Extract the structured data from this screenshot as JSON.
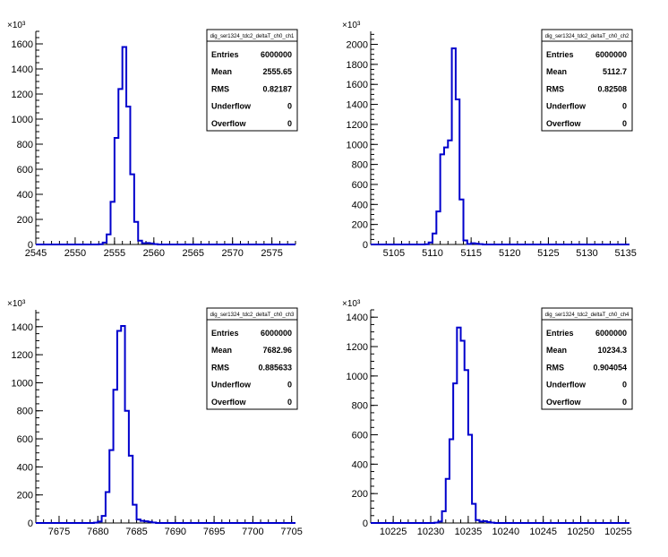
{
  "chart_data": [
    {
      "type": "histogram",
      "stats": {
        "title": "dig_ser1324_tdc2_deltaT_ch0_ch1",
        "entries": "6000000",
        "mean": "2555.65",
        "rms": "0.82187",
        "underflow": "0",
        "overflow": "0"
      },
      "x_range": [
        2545,
        2578
      ],
      "y_range": [
        0,
        1700
      ],
      "y_exponent": "×10³",
      "x_ticks": [
        2545,
        2550,
        2555,
        2560,
        2565,
        2570,
        2575
      ],
      "y_ticks": [
        0,
        200,
        400,
        600,
        800,
        1000,
        1200,
        1400,
        1600
      ],
      "bin_width": 0.5,
      "bins": [
        [
          2552.5,
          0
        ],
        [
          2553.0,
          2
        ],
        [
          2553.5,
          15
        ],
        [
          2554.0,
          80
        ],
        [
          2554.5,
          340
        ],
        [
          2555.0,
          850
        ],
        [
          2555.5,
          1240
        ],
        [
          2556.0,
          1575
        ],
        [
          2556.5,
          1100
        ],
        [
          2557.0,
          560
        ],
        [
          2557.5,
          180
        ],
        [
          2558.0,
          30
        ],
        [
          2558.5,
          10
        ],
        [
          2559.0,
          12
        ],
        [
          2559.5,
          8
        ],
        [
          2560.0,
          3
        ]
      ]
    },
    {
      "type": "histogram",
      "stats": {
        "title": "dig_ser1324_tdc2_deltaT_ch0_ch2",
        "entries": "6000000",
        "mean": "5112.7",
        "rms": "0.82508",
        "underflow": "0",
        "overflow": "0"
      },
      "x_range": [
        5102,
        5135.5
      ],
      "y_range": [
        0,
        2130
      ],
      "y_exponent": "×10³",
      "x_ticks": [
        5105,
        5110,
        5115,
        5120,
        5125,
        5130,
        5135
      ],
      "y_ticks": [
        0,
        200,
        400,
        600,
        800,
        1000,
        1200,
        1400,
        1600,
        1800,
        2000
      ],
      "bin_width": 0.5,
      "bins": [
        [
          5109.0,
          2
        ],
        [
          5109.5,
          20
        ],
        [
          5110.0,
          110
        ],
        [
          5110.5,
          330
        ],
        [
          5111.0,
          900
        ],
        [
          5111.5,
          970
        ],
        [
          5112.0,
          1040
        ],
        [
          5112.5,
          1960
        ],
        [
          5113.0,
          1450
        ],
        [
          5113.5,
          450
        ],
        [
          5114.0,
          40
        ],
        [
          5114.5,
          5
        ],
        [
          5115.0,
          12
        ],
        [
          5115.5,
          8
        ],
        [
          5116.0,
          3
        ]
      ]
    },
    {
      "type": "histogram",
      "stats": {
        "title": "dig_ser1324_tdc2_deltaT_ch0_ch3",
        "entries": "6000000",
        "mean": "7682.96",
        "rms": "0.885633",
        "underflow": "0",
        "overflow": "0"
      },
      "x_range": [
        7672,
        7705.5
      ],
      "y_range": [
        0,
        1520
      ],
      "y_exponent": "×10³",
      "x_ticks": [
        7675,
        7680,
        7685,
        7690,
        7695,
        7700,
        7705
      ],
      "y_ticks": [
        0,
        200,
        400,
        600,
        800,
        1000,
        1200,
        1400
      ],
      "bin_width": 0.5,
      "bins": [
        [
          7679.5,
          2
        ],
        [
          7680.0,
          10
        ],
        [
          7680.5,
          50
        ],
        [
          7681.0,
          220
        ],
        [
          7681.5,
          520
        ],
        [
          7682.0,
          950
        ],
        [
          7682.5,
          1370
        ],
        [
          7683.0,
          1405
        ],
        [
          7683.5,
          800
        ],
        [
          7684.0,
          480
        ],
        [
          7684.5,
          130
        ],
        [
          7685.0,
          25
        ],
        [
          7685.5,
          15
        ],
        [
          7686.0,
          12
        ],
        [
          7686.5,
          8
        ],
        [
          7687.0,
          3
        ]
      ]
    },
    {
      "type": "histogram",
      "stats": {
        "title": "dig_ser1324_tdc2_deltaT_ch0_ch4",
        "entries": "6000000",
        "mean": "10234.3",
        "rms": "0.904054",
        "underflow": "0",
        "overflow": "0"
      },
      "x_range": [
        10222,
        10256.5
      ],
      "y_range": [
        0,
        1450
      ],
      "y_exponent": "×10³",
      "x_ticks": [
        10225,
        10230,
        10235,
        10240,
        10245,
        10250,
        10255
      ],
      "y_ticks": [
        0,
        200,
        400,
        600,
        800,
        1000,
        1200,
        1400
      ],
      "bin_width": 0.5,
      "bins": [
        [
          10230.5,
          2
        ],
        [
          10231.0,
          10
        ],
        [
          10231.5,
          80
        ],
        [
          10232.0,
          300
        ],
        [
          10232.5,
          570
        ],
        [
          10233.0,
          950
        ],
        [
          10233.5,
          1330
        ],
        [
          10234.0,
          1240
        ],
        [
          10234.5,
          1040
        ],
        [
          10235.0,
          600
        ],
        [
          10235.5,
          130
        ],
        [
          10236.0,
          20
        ],
        [
          10236.5,
          10
        ],
        [
          10237.0,
          12
        ],
        [
          10237.5,
          6
        ],
        [
          10238.0,
          2
        ]
      ]
    }
  ],
  "stat_labels": {
    "entries": "Entries",
    "mean": "Mean",
    "rms": "RMS",
    "underflow": "Underflow",
    "overflow": "Overflow"
  }
}
